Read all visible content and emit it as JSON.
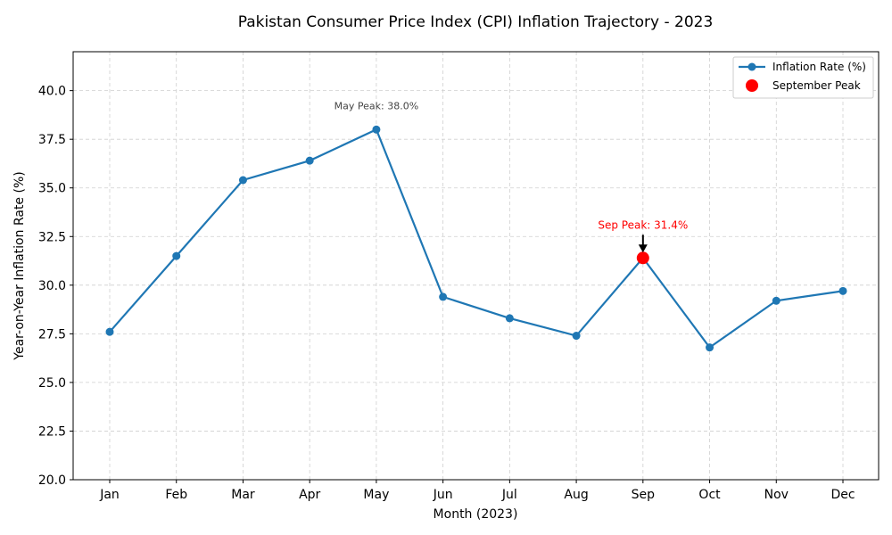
{
  "chart_data": {
    "type": "line",
    "title": "Pakistan Consumer Price Index (CPI) Inflation Trajectory - 2023",
    "xlabel": "Month (2023)",
    "ylabel": "Year-on-Year Inflation Rate (%)",
    "categories": [
      "Jan",
      "Feb",
      "Mar",
      "Apr",
      "May",
      "Jun",
      "Jul",
      "Aug",
      "Sep",
      "Oct",
      "Nov",
      "Dec"
    ],
    "series": [
      {
        "name": "Inflation Rate (%)",
        "color": "#1f77b4",
        "values": [
          27.6,
          31.5,
          35.4,
          36.4,
          38.0,
          29.4,
          28.3,
          27.4,
          31.4,
          26.8,
          29.2,
          29.7
        ]
      },
      {
        "name": "September Peak",
        "color": "#ff0000",
        "type": "scatter",
        "points": [
          {
            "x": "Sep",
            "y": 31.4
          }
        ]
      }
    ],
    "ylim": [
      20,
      42
    ],
    "yticks": [
      "20.0",
      "22.5",
      "25.0",
      "27.5",
      "30.0",
      "32.5",
      "35.0",
      "37.5",
      "40.0"
    ],
    "grid": true,
    "legend_position": "top-right",
    "annotations": [
      {
        "text": "May Peak: 38.0%",
        "x": "May",
        "y": 38.0,
        "color": "#444444",
        "arrow": false
      },
      {
        "text": "Sep Peak: 31.4%",
        "x": "Sep",
        "y": 31.4,
        "color": "#ff0000",
        "arrow": true
      }
    ]
  }
}
